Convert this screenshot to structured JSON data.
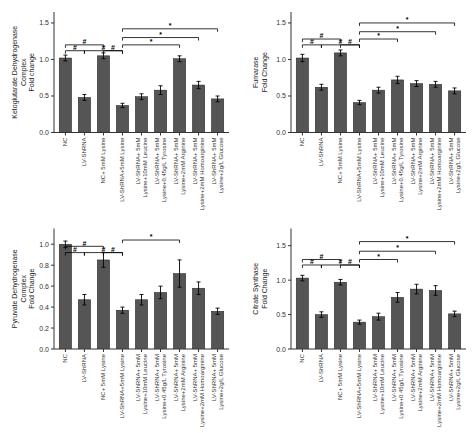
{
  "chart_data": [
    {
      "type": "bar",
      "y_label": "Ketoglutarate Dehydrogenase\nComplex\nFold change",
      "categories": [
        "NC",
        "LV-ShRNA",
        "NC+ 5mM Lysine",
        "LV-ShRNA+5mM Lysine",
        "LV-ShRNA+ 5mM\nLysine+10mM Leucine",
        "LV-ShRNA+ 5mM\nLysine+0.45g/L Tyrosine",
        "LV-ShRNA+ 5mM\nLysine+2mM Arginine",
        "LV-ShRNA+ 5mM\nLysine+2mM Homoarginine",
        "LV-ShRNA+ 5mM\nLysine+2g/L Glucose"
      ],
      "values": [
        1.02,
        0.48,
        1.05,
        0.37,
        0.49,
        0.58,
        1.01,
        0.65,
        0.46
      ],
      "errors": [
        0.04,
        0.04,
        0.04,
        0.03,
        0.04,
        0.06,
        0.04,
        0.05,
        0.04
      ],
      "color": "#555555",
      "ylim": [
        0,
        1.65
      ],
      "yticks": [
        {
          "value": 0.0,
          "label": "0.0"
        },
        0.5,
        {
          "value": 1.0,
          "label": "1.0"
        },
        1.5
      ],
      "annotations": [
        {
          "text": "#",
          "from": 0,
          "to": 1,
          "y": 1.12
        },
        {
          "text": "#",
          "from": 0,
          "to": 2,
          "y": 1.2
        },
        {
          "text": "#",
          "from": 1,
          "to": 3,
          "y": 1.12
        },
        {
          "text": "#",
          "from": 2,
          "to": 3,
          "y": 1.12
        },
        {
          "text": "*",
          "from": 3,
          "to": 6,
          "y": 1.2
        },
        {
          "text": "*",
          "from": 3,
          "to": 7,
          "y": 1.3
        },
        {
          "text": "*",
          "from": 3,
          "to": 8,
          "y": 1.42
        }
      ]
    },
    {
      "type": "bar",
      "y_label": "Fumarase\nFold Change",
      "categories": [
        "NC",
        "LV-ShRNA",
        "NC+ 5mM Lysine",
        "LV-ShRNA+5mM Lysine",
        "LV-ShRNA+ 5mM\nLysine+10mM Leucine",
        "LV-ShRNA+ 5mM\nLysine+0.45g/L Tyrosine",
        "LV-ShRNA+ 5mM\nLysine+2mM Arginine",
        "LV-ShRNA+ 5mM\nLysine+2mM Homoarginine",
        "LV-ShRNA+ 5mM\nLysine+2g/L Glucose"
      ],
      "values": [
        1.02,
        0.62,
        1.09,
        0.41,
        0.58,
        0.72,
        0.67,
        0.66,
        0.57
      ],
      "errors": [
        0.05,
        0.04,
        0.04,
        0.03,
        0.04,
        0.05,
        0.04,
        0.04,
        0.04
      ],
      "color": "#555555",
      "ylim": [
        0,
        1.65
      ],
      "yticks": [
        {
          "value": 0.0,
          "label": "0.0"
        },
        0.5,
        {
          "value": 1.0,
          "label": "1.0"
        },
        1.5
      ],
      "annotations": [
        {
          "text": "#",
          "from": 0,
          "to": 1,
          "y": 1.2
        },
        {
          "text": "#",
          "from": 0,
          "to": 2,
          "y": 1.28
        },
        {
          "text": "#",
          "from": 1,
          "to": 3,
          "y": 1.2
        },
        {
          "text": "#",
          "from": 2,
          "to": 3,
          "y": 1.2
        },
        {
          "text": "*",
          "from": 3,
          "to": 5,
          "y": 1.28
        },
        {
          "text": "*",
          "from": 3,
          "to": 7,
          "y": 1.38
        },
        {
          "text": "*",
          "from": 3,
          "to": 8,
          "y": 1.5
        }
      ]
    },
    {
      "type": "bar",
      "y_label": "Pyruvate Dehydrogenase\nComplex\nFold Change",
      "categories": [
        "NC",
        "LV-ShRNA",
        "NC+ 5mM Lysine",
        "LV-ShRNA+5mM Lysine",
        "LV-ShRNA+ 5mM\nLysine+10mM Leucine",
        "LV-ShRNA+ 5mM\nLysine+0.45g/L Tyrosine",
        "LV-ShRNA+ 5mM\nLysine+2mM Arginine",
        "LV-ShRNA+ 5mM\nLysine+2mM Homoarginine",
        "LV-ShRNA+ 5mM\nLysine+2g/L Glucose"
      ],
      "values": [
        1.0,
        0.47,
        0.85,
        0.37,
        0.47,
        0.54,
        0.72,
        0.58,
        0.36
      ],
      "errors": [
        0.03,
        0.05,
        0.07,
        0.03,
        0.05,
        0.06,
        0.13,
        0.06,
        0.03
      ],
      "color": "#555555",
      "ylim": [
        0,
        1.15
      ],
      "yticks": [
        {
          "value": 0.0,
          "label": "0.0"
        },
        0.2,
        0.4,
        0.6,
        0.8,
        {
          "value": 1.0,
          "label": "1.0"
        }
      ],
      "annotations": [
        {
          "text": "#",
          "from": 0,
          "to": 1,
          "y": 0.92
        },
        {
          "text": "#",
          "from": 0,
          "to": 2,
          "y": 0.98
        },
        {
          "text": "#",
          "from": 1,
          "to": 3,
          "y": 0.92
        },
        {
          "text": "#",
          "from": 2,
          "to": 3,
          "y": 0.92
        },
        {
          "text": "*",
          "from": 3,
          "to": 6,
          "y": 1.04
        }
      ]
    },
    {
      "type": "bar",
      "y_label": "Citrate Synthase\nFold Change",
      "categories": [
        "NC",
        "LV-ShRNA",
        "NC+ 5mM Lysine",
        "LV-ShRNA+5mM Lysine",
        "LV-ShRNA+ 5mM\nLysine+10mM Leucine",
        "LV-ShRNA+ 5mM\nLysine+0.45g/L Tyrosine",
        "LV-ShRNA+ 5mM\nLysine+2mM Arginine",
        "LV-ShRNA+ 5mM\nLysine+2mM Homoarginine",
        "LV-ShRNA+ 5mM\nLysine+2g/L Glucose"
      ],
      "values": [
        1.03,
        0.5,
        0.97,
        0.39,
        0.47,
        0.75,
        0.87,
        0.85,
        0.51
      ],
      "errors": [
        0.04,
        0.04,
        0.04,
        0.03,
        0.05,
        0.07,
        0.07,
        0.07,
        0.04
      ],
      "color": "#555555",
      "ylim": [
        0,
        1.75
      ],
      "yticks": [
        {
          "value": 0.0,
          "label": "0.0"
        },
        0.5,
        {
          "value": 1.0,
          "label": "1.0"
        },
        1.5
      ],
      "annotations": [
        {
          "text": "#",
          "from": 0,
          "to": 1,
          "y": 1.22
        },
        {
          "text": "#",
          "from": 0,
          "to": 2,
          "y": 1.3
        },
        {
          "text": "#",
          "from": 1,
          "to": 3,
          "y": 1.22
        },
        {
          "text": "#",
          "from": 2,
          "to": 3,
          "y": 1.22
        },
        {
          "text": "*",
          "from": 3,
          "to": 5,
          "y": 1.3
        },
        {
          "text": "*",
          "from": 3,
          "to": 7,
          "y": 1.42
        },
        {
          "text": "*",
          "from": 3,
          "to": 8,
          "y": 1.56
        }
      ]
    }
  ]
}
